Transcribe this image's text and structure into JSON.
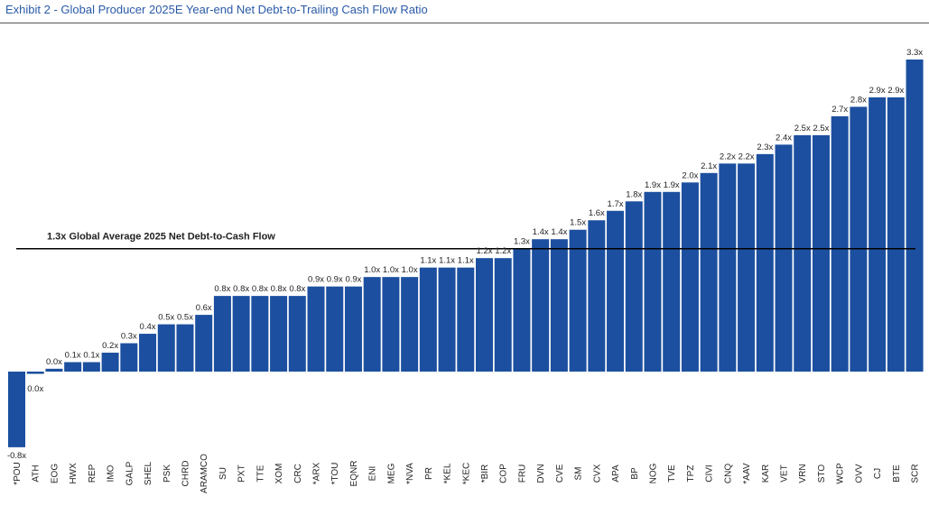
{
  "exhibit": {
    "title": "Exhibit 2 - Global Producer 2025E Year-end Net Debt-to-Trailing Cash Flow Ratio"
  },
  "colors": {
    "bar": "#1c4f9f",
    "title": "#2a5aa8",
    "average_line": "#000000",
    "text": "#222222"
  },
  "chart_data": {
    "type": "bar",
    "title": "",
    "xlabel": "",
    "ylabel": "",
    "ylim": [
      -0.8,
      3.3
    ],
    "grid": false,
    "legend": "none",
    "categories": [
      "*POU",
      "ATH",
      "EOG",
      "HWX",
      "REP",
      "IMO",
      "GALP",
      "SHEL",
      "PSK",
      "CHRD",
      "ARAMCO",
      "SU",
      "PXT",
      "TTE",
      "XOM",
      "CRC",
      "*ARX",
      "*TOU",
      "EQNR",
      "ENI",
      "MEG",
      "*NVA",
      "PR",
      "*KEL",
      "*KEC",
      "*BIR",
      "COP",
      "FRU",
      "DVN",
      "CVE",
      "SM",
      "CVX",
      "APA",
      "BP",
      "NOG",
      "TVE",
      "TPZ",
      "CIVI",
      "CNQ",
      "*AAV",
      "KAR",
      "VET",
      "VRN",
      "STO",
      "WCP",
      "OVV",
      "CJ",
      "BTE",
      "SCR"
    ],
    "values": [
      -0.8,
      -0.02,
      0.03,
      0.1,
      0.1,
      0.2,
      0.3,
      0.4,
      0.5,
      0.5,
      0.6,
      0.8,
      0.8,
      0.8,
      0.8,
      0.8,
      0.9,
      0.9,
      0.9,
      1.0,
      1.0,
      1.0,
      1.1,
      1.1,
      1.1,
      1.2,
      1.2,
      1.3,
      1.4,
      1.4,
      1.5,
      1.6,
      1.7,
      1.8,
      1.9,
      1.9,
      2.0,
      2.1,
      2.2,
      2.2,
      2.3,
      2.4,
      2.5,
      2.5,
      2.7,
      2.8,
      2.9,
      2.9,
      3.3
    ],
    "data_labels": [
      "-0.8x",
      "0.0x",
      "0.0x",
      "0.1x",
      "0.1x",
      "0.2x",
      "0.3x",
      "0.4x",
      "0.5x",
      "0.5x",
      "0.6x",
      "0.8x",
      "0.8x",
      "0.8x",
      "0.8x",
      "0.8x",
      "0.9x",
      "0.9x",
      "0.9x",
      "1.0x",
      "1.0x",
      "1.0x",
      "1.1x",
      "1.1x",
      "1.1x",
      "1.2x",
      "1.2x",
      "1.3x",
      "1.4x",
      "1.4x",
      "1.5x",
      "1.6x",
      "1.7x",
      "1.8x",
      "1.9x",
      "1.9x",
      "2.0x",
      "2.1x",
      "2.2x",
      "2.2x",
      "2.3x",
      "2.4x",
      "2.5x",
      "2.5x",
      "2.7x",
      "2.8x",
      "2.9x",
      "2.9x",
      "3.3x"
    ],
    "reference_line": {
      "value": 1.3,
      "label": "1.3x Global Average 2025 Net Debt-to-Cash Flow"
    }
  }
}
